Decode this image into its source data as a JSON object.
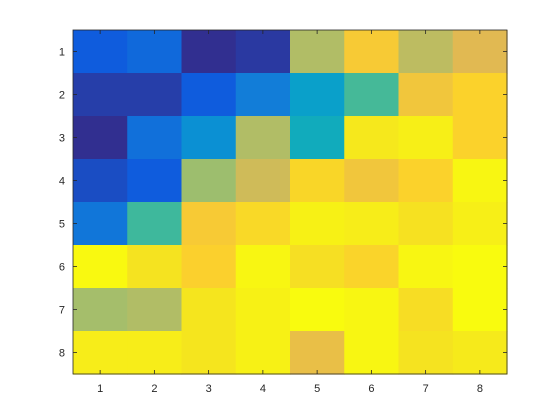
{
  "chart_data": {
    "type": "heatmap",
    "title": "",
    "xlabel": "",
    "ylabel": "",
    "x_categories": [
      "1",
      "2",
      "3",
      "4",
      "5",
      "6",
      "7",
      "8"
    ],
    "y_categories": [
      "1",
      "2",
      "3",
      "4",
      "5",
      "6",
      "7",
      "8"
    ],
    "y_direction": "top-to-bottom",
    "colormap": "parula",
    "values": [
      [
        0.1,
        0.14,
        0.01,
        0.03,
        0.62,
        0.78,
        0.64,
        0.7
      ],
      [
        0.04,
        0.04,
        0.1,
        0.2,
        0.32,
        0.47,
        0.76,
        0.82
      ],
      [
        0.01,
        0.16,
        0.26,
        0.62,
        0.37,
        0.92,
        0.95,
        0.82
      ],
      [
        0.07,
        0.1,
        0.59,
        0.67,
        0.84,
        0.76,
        0.82,
        0.98
      ],
      [
        0.18,
        0.46,
        0.78,
        0.85,
        0.96,
        0.94,
        0.89,
        0.95
      ],
      [
        0.99,
        0.9,
        0.81,
        0.98,
        0.88,
        0.83,
        0.98,
        1.0
      ],
      [
        0.6,
        0.62,
        0.91,
        0.96,
        1.0,
        0.98,
        0.87,
        1.0
      ],
      [
        0.94,
        0.94,
        0.91,
        0.96,
        0.73,
        0.98,
        0.9,
        0.93
      ]
    ],
    "grid": false,
    "legend": "none"
  }
}
